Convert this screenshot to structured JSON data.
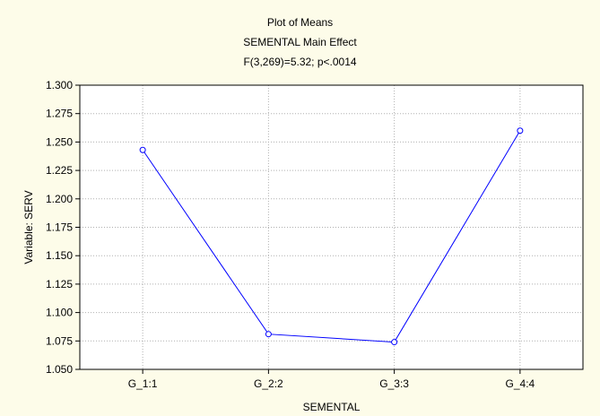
{
  "chart_data": {
    "type": "line",
    "title_lines": [
      "Plot of Means",
      "SEMENTAL Main Effect",
      "F(3,269)=5.32; p<.0014"
    ],
    "xlabel": "SEMENTAL",
    "ylabel": "Variable: SERV",
    "categories": [
      "G_1:1",
      "G_2:2",
      "G_3:3",
      "G_4:4"
    ],
    "series": [
      {
        "values": [
          1.243,
          1.081,
          1.074,
          1.26
        ]
      }
    ],
    "ylim": [
      1.05,
      1.3
    ],
    "yticks": [
      "1.050",
      "1.075",
      "1.100",
      "1.125",
      "1.150",
      "1.175",
      "1.200",
      "1.225",
      "1.250",
      "1.275",
      "1.300"
    ],
    "grid": true,
    "colors": {
      "line": "#0000ff",
      "background": "#fdfce9",
      "plot_area": "#ffffff",
      "grid": "#b0b0b0"
    }
  }
}
